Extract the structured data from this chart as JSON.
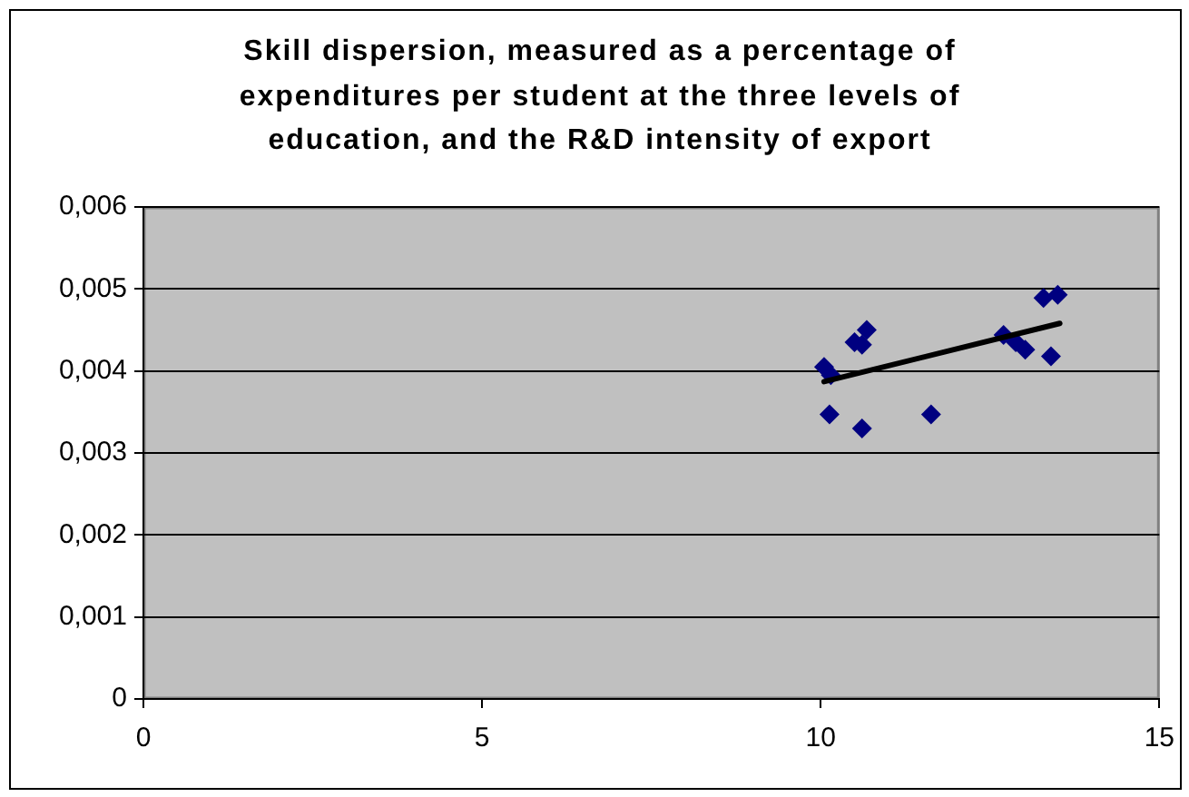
{
  "chart_data": {
    "type": "scatter",
    "title": "Skill dispersion, measured as a percentage of expenditures per student at the three levels of education, and the R&D intensity of export",
    "xlim": [
      0,
      15
    ],
    "xticks": [
      0,
      5,
      10,
      15
    ],
    "ylim": [
      0,
      0.006
    ],
    "yticks": [
      0,
      {
        "value": 0.001,
        "label": "0,001"
      },
      {
        "value": 0.002,
        "label": "0,002"
      },
      {
        "value": 0.003,
        "label": "0,003"
      },
      {
        "value": 0.004,
        "label": "0,004"
      },
      {
        "value": 0.005,
        "label": "0,005"
      },
      {
        "value": 0.006,
        "label": "0,006"
      }
    ],
    "grid": "y",
    "legend": false,
    "marker": "diamond",
    "series": [
      {
        "type": "scatter",
        "color": "#000080",
        "x": [
          10.05,
          10.15,
          10.13,
          10.61,
          11.63,
          10.5,
          10.68,
          10.61,
          12.7,
          12.88,
          13.02,
          13.4,
          13.29,
          13.5
        ],
        "values": [
          0.00405,
          0.00395,
          0.00347,
          0.0033,
          0.00347,
          0.00435,
          0.0045,
          0.00432,
          0.00444,
          0.00435,
          0.00426,
          0.00418,
          0.00489,
          0.00493
        ]
      },
      {
        "type": "line",
        "color": "#000000",
        "marker": "none",
        "x": [
          10.05,
          13.53
        ],
        "values": [
          0.00387,
          0.00458
        ]
      }
    ]
  }
}
